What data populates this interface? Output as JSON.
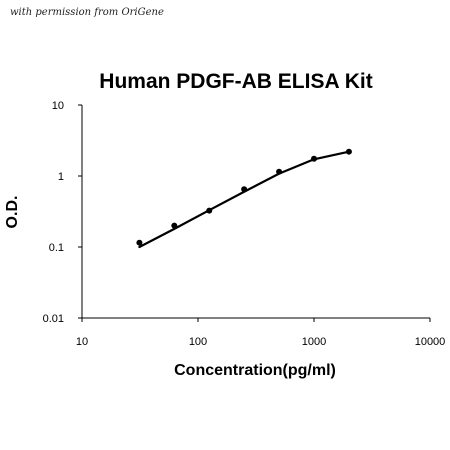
{
  "permission_note": "with permission from OriGene",
  "chart_data": {
    "type": "scatter",
    "title": "Human PDGF-AB ELISA Kit",
    "xlabel": "Concentration(pg/ml)",
    "ylabel": "O.D.",
    "x_scale": "log",
    "y_scale": "log",
    "xlim": [
      10,
      10000
    ],
    "ylim": [
      0.01,
      10
    ],
    "x_ticks": [
      "10",
      "100",
      "1000",
      "10000"
    ],
    "y_ticks": [
      "0.01",
      "0.1",
      "1",
      "10"
    ],
    "grid": false,
    "legend": "none",
    "series": [
      {
        "x": [
          31.25,
          62.5,
          125,
          250,
          500,
          1000,
          2000
        ],
        "y": [
          0.115,
          0.2,
          0.325,
          0.65,
          1.15,
          1.75,
          2.2
        ]
      }
    ],
    "fit_curve": {
      "x": [
        31.25,
        62.5,
        125,
        250,
        500,
        1000,
        2000
      ],
      "y": [
        0.1,
        0.18,
        0.33,
        0.6,
        1.08,
        1.72,
        2.2
      ]
    }
  }
}
